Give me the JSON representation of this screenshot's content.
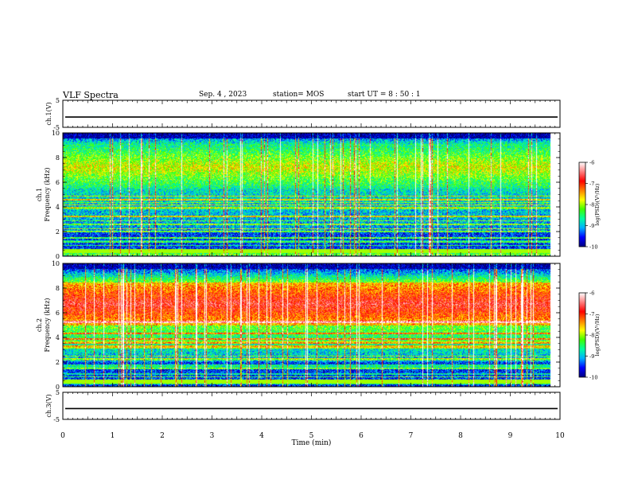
{
  "header": {
    "title": "VLF Spectra",
    "date": "Sep. 4 , 2023",
    "station": "station= MOS",
    "start": "start  UT =   8 : 50 : 1"
  },
  "chart_data": [
    {
      "type": "line",
      "name": "ch1-waveform",
      "ylabel": "ch.1(V)",
      "yticks": [
        5,
        -5
      ],
      "ylim": [
        -5,
        5
      ],
      "xlim": [
        0,
        10
      ],
      "level": -1.2
    },
    {
      "type": "heatmap",
      "name": "ch1-spectrogram",
      "ylabel_line1": "ch.1",
      "ylabel_line2": "Frequency (kHz)",
      "yticks": [
        0,
        2,
        4,
        6,
        8,
        10
      ],
      "ylim": [
        0,
        10
      ],
      "xlim": [
        0,
        10
      ],
      "data_end_min": 9.8,
      "band_khz": [
        5.5,
        9.0
      ],
      "colorbar": {
        "label": "log(PSD)(V²/Hz)",
        "ticks": [
          "-6",
          "-7",
          "-8",
          "-9",
          "-10"
        ],
        "range": [
          -10,
          -6
        ]
      }
    },
    {
      "type": "heatmap",
      "name": "ch2-spectrogram",
      "ylabel_line1": "ch.2",
      "ylabel_line2": "Frequency (kHz)",
      "yticks": [
        0,
        2,
        4,
        6,
        8,
        10
      ],
      "ylim": [
        0,
        10
      ],
      "xlim": [
        0,
        10
      ],
      "data_end_min": 9.8,
      "band_khz": [
        5.0,
        8.5
      ],
      "colorbar": {
        "label": "log(PSD)(V²/Hz)",
        "ticks": [
          "-6",
          "-7",
          "-8",
          "-9",
          "-10"
        ],
        "range": [
          -10,
          -6
        ]
      }
    },
    {
      "type": "line",
      "name": "ch3-waveform",
      "ylabel": "ch.3(V)",
      "yticks": [
        5,
        -5
      ],
      "ylim": [
        -5,
        5
      ],
      "xlim": [
        0,
        10
      ],
      "level": -1.0
    }
  ],
  "xaxis": {
    "label": "Time (min)",
    "ticks": [
      "0",
      "1",
      "2",
      "3",
      "4",
      "5",
      "6",
      "7",
      "8",
      "9",
      "10"
    ]
  },
  "colors": {
    "colormap": [
      "#000080",
      "#0000ff",
      "#00b0ff",
      "#00ffa0",
      "#40ff00",
      "#ffff00",
      "#ff8000",
      "#ff0000",
      "#ff8080",
      "#ffffff"
    ]
  }
}
